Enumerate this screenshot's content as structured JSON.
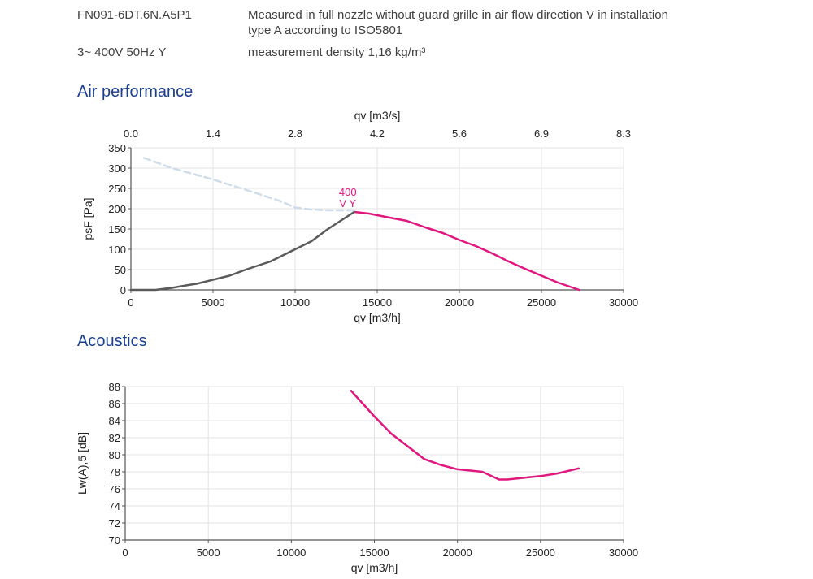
{
  "header": {
    "model": "FN091-6DT.6N.A5P1",
    "description_line1": "Measured in full nozzle without guard grille in air flow direction V in installation",
    "description_line2": "type A according to ISO5801",
    "supply": "3~ 400V 50Hz Y",
    "density": "measurement density 1,16 kg/m³"
  },
  "chart_data": [
    {
      "type": "line",
      "title": "Air performance",
      "xlabel": "qv [m3/h]",
      "ylabel": "psF [Pa]",
      "secondary_xlabel": "qv [m3/s]",
      "secondary_xticks": [
        "0.0",
        "1.4",
        "2.8",
        "4.2",
        "5.6",
        "6.9",
        "8.3"
      ],
      "xlim": [
        0,
        30000
      ],
      "ylim": [
        0,
        350
      ],
      "xticks": [
        0,
        5000,
        10000,
        15000,
        20000,
        25000,
        30000
      ],
      "yticks": [
        0,
        50,
        100,
        150,
        200,
        250,
        300,
        350
      ],
      "grid": true,
      "curve_label": [
        "400",
        "V Y"
      ],
      "colors": {
        "main": "#e0177e",
        "system": "#5a5a5a",
        "extended": "#cfdcea",
        "axis": "#555555",
        "grid": "#e3e3e3"
      },
      "series": [
        {
          "style": "solid",
          "x": [
            13600,
            14500,
            15500,
            16800,
            18000,
            19000,
            20000,
            21000,
            22000,
            23000,
            24000,
            25000,
            26000,
            27300
          ],
          "y": [
            192,
            188,
            180,
            170,
            153,
            140,
            123,
            108,
            90,
            70,
            52,
            35,
            18,
            0
          ]
        },
        {
          "style": "solid-gray",
          "x": [
            0,
            1500,
            2500,
            3500,
            4000,
            5000,
            6000,
            7000,
            8500,
            10000,
            11000,
            12000,
            13600
          ],
          "y": [
            0,
            0,
            5,
            12,
            15,
            25,
            35,
            50,
            70,
            100,
            120,
            150,
            192
          ]
        },
        {
          "style": "dashed",
          "x": [
            800,
            2500,
            5000,
            7500,
            9000,
            10000,
            11000,
            12000,
            13600
          ],
          "y": [
            325,
            300,
            272,
            240,
            220,
            203,
            198,
            196,
            196
          ]
        }
      ]
    },
    {
      "type": "line",
      "title": "Acoustics",
      "xlabel": "qv [m3/h]",
      "ylabel": "Lw(A),5 [dB]",
      "xlim": [
        0,
        30000
      ],
      "ylim": [
        70,
        88
      ],
      "xticks": [
        0,
        5000,
        10000,
        15000,
        20000,
        25000,
        30000
      ],
      "yticks": [
        70,
        72,
        74,
        76,
        78,
        80,
        82,
        84,
        86,
        88
      ],
      "grid": true,
      "colors": {
        "main": "#e0177e",
        "axis": "#555555",
        "grid": "#e3e3e3"
      },
      "series": [
        {
          "style": "solid",
          "x": [
            13600,
            14300,
            15000,
            16000,
            17000,
            18000,
            19000,
            20000,
            21500,
            22500,
            23000,
            24000,
            25000,
            26000,
            27300
          ],
          "y": [
            87.5,
            86.0,
            84.5,
            82.5,
            81.0,
            79.5,
            78.8,
            78.3,
            78.0,
            77.1,
            77.1,
            77.3,
            77.5,
            77.8,
            78.4
          ]
        }
      ]
    }
  ]
}
